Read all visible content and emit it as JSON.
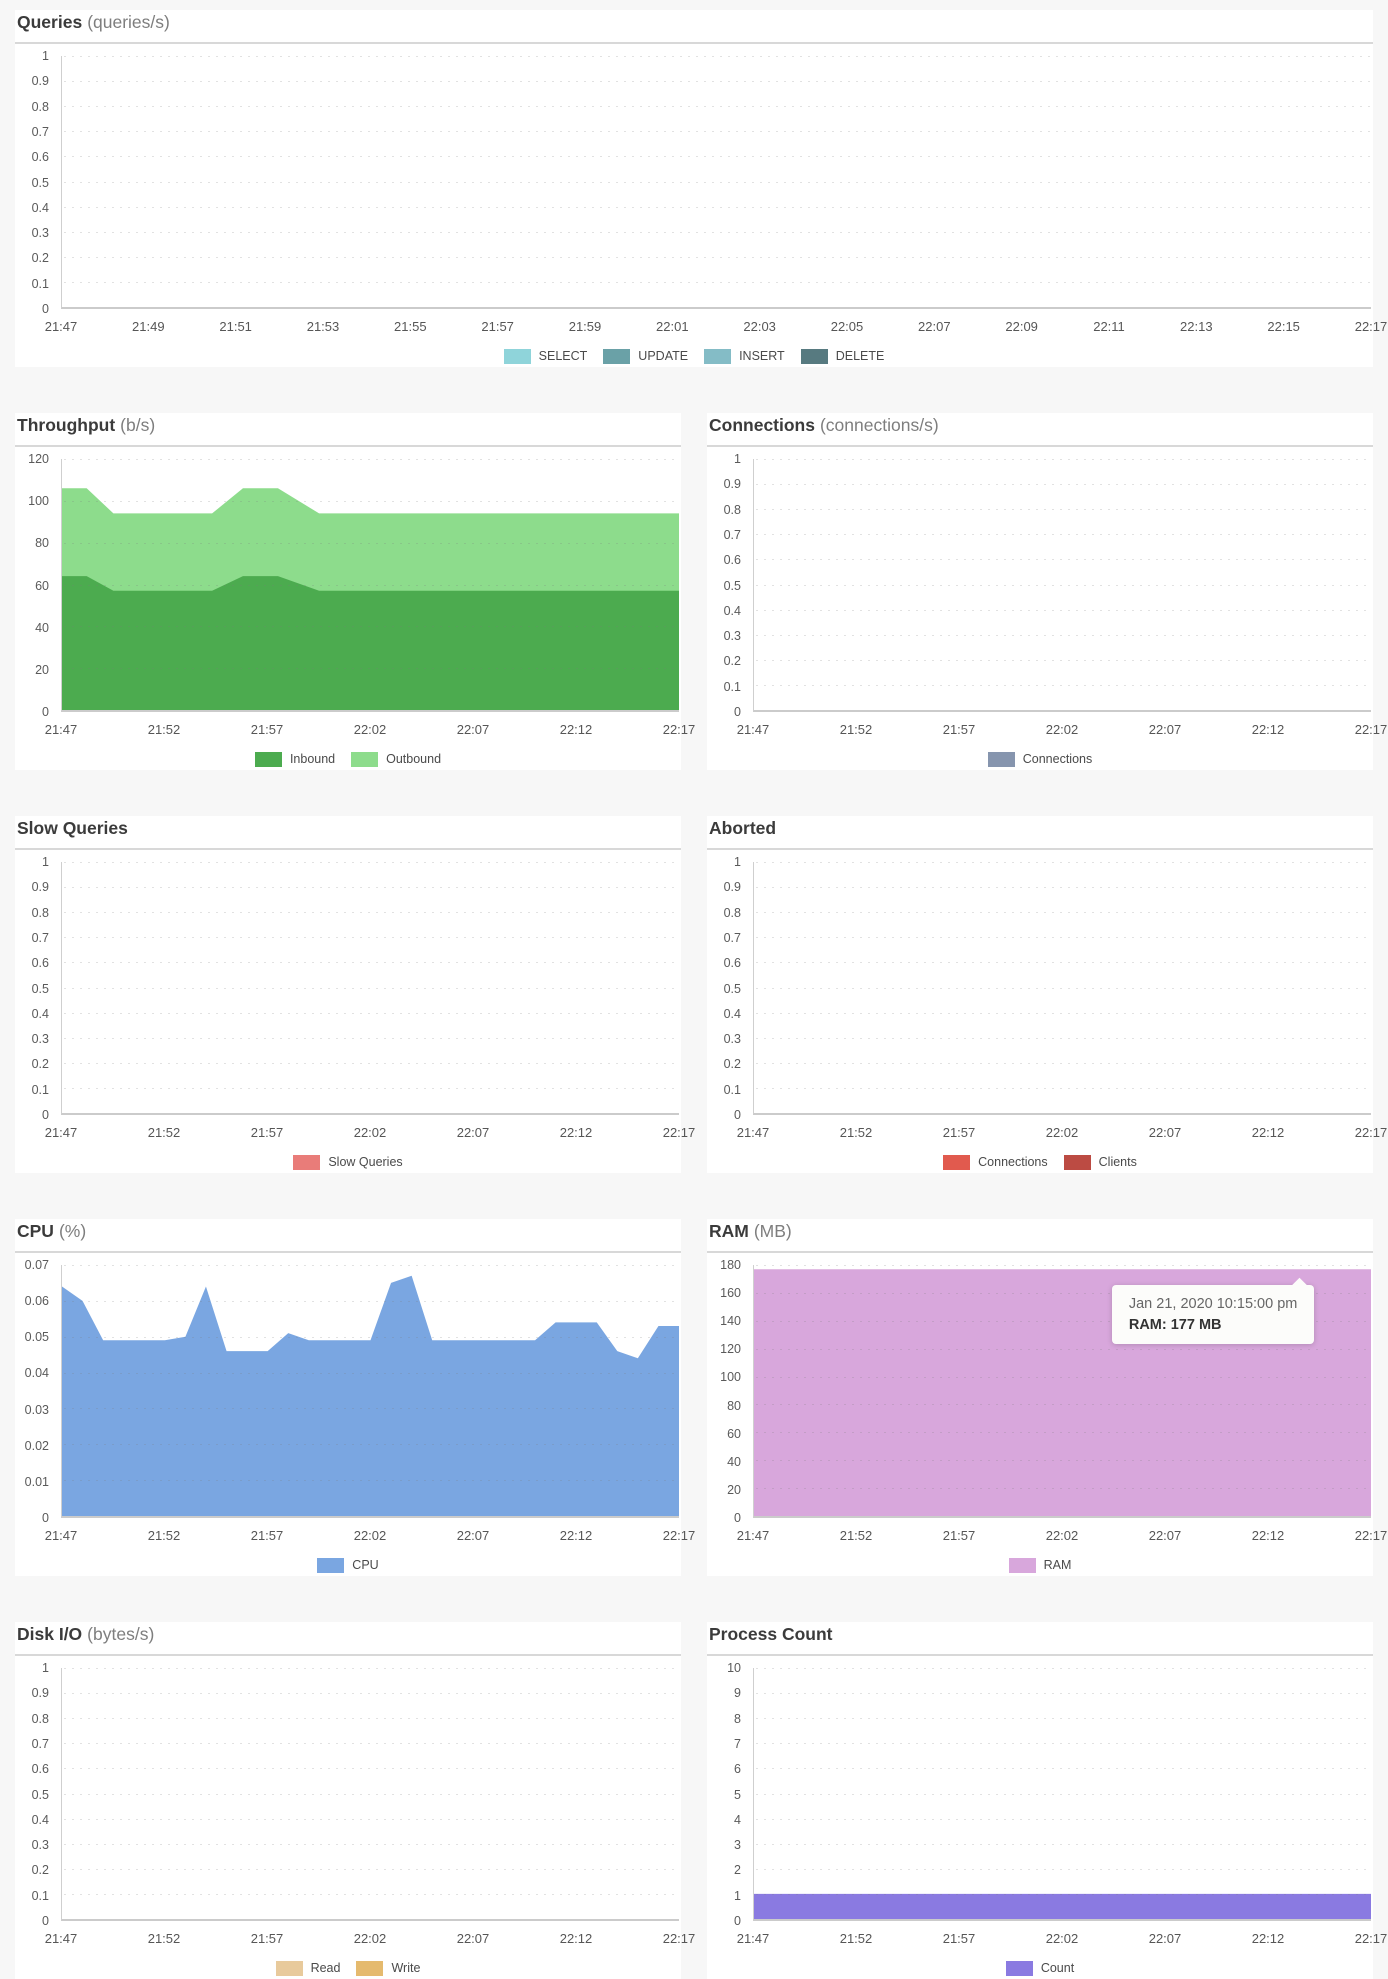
{
  "page": {
    "background": "#f7f7f7",
    "panel_background": "#ffffff",
    "axis_color": "#cbcbcb",
    "grid_color": "#e4e4e4",
    "title_color": "#3b3b3b",
    "unit_color": "#7e7e7e",
    "tick_color": "#5a5a5a"
  },
  "chart_data": [
    {
      "type": "area",
      "title": "Queries",
      "unit": "(queries/s)",
      "layout": "full",
      "ylim": [
        0,
        1
      ],
      "yticks": [
        "1",
        "0.9",
        "0.8",
        "0.7",
        "0.6",
        "0.5",
        "0.4",
        "0.3",
        "0.2",
        "0.1",
        "0"
      ],
      "x_ticks": [
        "21:47",
        "21:49",
        "21:51",
        "21:53",
        "21:55",
        "21:57",
        "21:59",
        "22:01",
        "22:03",
        "22:05",
        "22:07",
        "22:09",
        "22:11",
        "22:13",
        "22:15",
        "22:17"
      ],
      "x_minutes": 30,
      "series": [],
      "legend": [
        {
          "label": "SELECT",
          "color": "#8fd4da"
        },
        {
          "label": "UPDATE",
          "color": "#6aa1a7"
        },
        {
          "label": "INSERT",
          "color": "#84bcc6"
        },
        {
          "label": "DELETE",
          "color": "#577a80"
        }
      ]
    },
    {
      "type": "area",
      "title": "Throughput",
      "unit": "(b/s)",
      "layout": "half",
      "ylim": [
        0,
        120
      ],
      "yticks": [
        "120",
        "100",
        "80",
        "60",
        "40",
        "20",
        "0"
      ],
      "x_ticks": [
        "21:47",
        "21:52",
        "21:57",
        "22:02",
        "22:07",
        "22:12",
        "22:17"
      ],
      "x_minutes": 30,
      "series": [
        {
          "name": "Outbound",
          "color": "#8ddc8c",
          "x": [
            0,
            1.2,
            2.5,
            7.3,
            8.8,
            10.5,
            12.5,
            30
          ],
          "values": [
            106,
            106,
            94,
            94,
            106,
            106,
            94,
            94
          ]
        },
        {
          "name": "Inbound",
          "color": "#4cab4f",
          "x": [
            0,
            1.2,
            2.5,
            7.3,
            8.8,
            10.5,
            12.5,
            30
          ],
          "values": [
            64,
            64,
            57,
            57,
            64,
            64,
            57,
            57
          ]
        }
      ],
      "legend": [
        {
          "label": "Inbound",
          "color": "#4cab4f"
        },
        {
          "label": "Outbound",
          "color": "#8ddc8c"
        }
      ]
    },
    {
      "type": "area",
      "title": "Connections",
      "unit": "(connections/s)",
      "layout": "half",
      "ylim": [
        0,
        1
      ],
      "yticks": [
        "1",
        "0.9",
        "0.8",
        "0.7",
        "0.6",
        "0.5",
        "0.4",
        "0.3",
        "0.2",
        "0.1",
        "0"
      ],
      "x_ticks": [
        "21:47",
        "21:52",
        "21:57",
        "22:02",
        "22:07",
        "22:12",
        "22:17"
      ],
      "x_minutes": 30,
      "series": [],
      "legend": [
        {
          "label": "Connections",
          "color": "#8695ae"
        }
      ]
    },
    {
      "type": "area",
      "title": "Slow Queries",
      "unit": "",
      "layout": "half",
      "ylim": [
        0,
        1
      ],
      "yticks": [
        "1",
        "0.9",
        "0.8",
        "0.7",
        "0.6",
        "0.5",
        "0.4",
        "0.3",
        "0.2",
        "0.1",
        "0"
      ],
      "x_ticks": [
        "21:47",
        "21:52",
        "21:57",
        "22:02",
        "22:07",
        "22:12",
        "22:17"
      ],
      "x_minutes": 30,
      "series": [],
      "legend": [
        {
          "label": "Slow Queries",
          "color": "#e97c79"
        }
      ]
    },
    {
      "type": "area",
      "title": "Aborted",
      "unit": "",
      "layout": "half",
      "ylim": [
        0,
        1
      ],
      "yticks": [
        "1",
        "0.9",
        "0.8",
        "0.7",
        "0.6",
        "0.5",
        "0.4",
        "0.3",
        "0.2",
        "0.1",
        "0"
      ],
      "x_ticks": [
        "21:47",
        "21:52",
        "21:57",
        "22:02",
        "22:07",
        "22:12",
        "22:17"
      ],
      "x_minutes": 30,
      "series": [],
      "legend": [
        {
          "label": "Connections",
          "color": "#e15a4e"
        },
        {
          "label": "Clients",
          "color": "#bc4b43"
        }
      ]
    },
    {
      "type": "area",
      "title": "CPU",
      "unit": "(%)",
      "layout": "half",
      "ylim": [
        0,
        0.07
      ],
      "yticks": [
        "0.07",
        "0.06",
        "0.05",
        "0.04",
        "0.03",
        "0.02",
        "0.01",
        "0"
      ],
      "x_ticks": [
        "21:47",
        "21:52",
        "21:57",
        "22:02",
        "22:07",
        "22:12",
        "22:17"
      ],
      "x_minutes": 30,
      "series": [
        {
          "name": "CPU",
          "color": "#7aa6e1",
          "x": [
            0,
            1,
            2,
            3,
            4,
            5,
            6,
            7,
            8,
            9,
            10,
            11,
            12,
            13,
            14,
            15,
            16,
            17,
            18,
            19,
            20,
            21,
            22,
            23,
            24,
            25,
            26,
            27,
            28,
            29,
            30
          ],
          "values": [
            0.064,
            0.06,
            0.049,
            0.049,
            0.049,
            0.049,
            0.05,
            0.064,
            0.046,
            0.046,
            0.046,
            0.051,
            0.049,
            0.049,
            0.049,
            0.049,
            0.065,
            0.067,
            0.049,
            0.049,
            0.049,
            0.049,
            0.049,
            0.049,
            0.054,
            0.054,
            0.054,
            0.046,
            0.044,
            0.053,
            0.053
          ]
        }
      ],
      "legend": [
        {
          "label": "CPU",
          "color": "#7aa6e1"
        }
      ]
    },
    {
      "type": "area",
      "title": "RAM",
      "unit": "(MB)",
      "layout": "half",
      "ylim": [
        0,
        180
      ],
      "yticks": [
        "180",
        "160",
        "140",
        "120",
        "100",
        "80",
        "60",
        "40",
        "20",
        "0"
      ],
      "x_ticks": [
        "21:47",
        "21:52",
        "21:57",
        "22:02",
        "22:07",
        "22:12",
        "22:17"
      ],
      "x_minutes": 30,
      "series": [
        {
          "name": "RAM",
          "color": "#d8a7dc",
          "x": [
            0,
            30
          ],
          "values": [
            177,
            177
          ]
        }
      ],
      "tooltip": {
        "timestamp": "Jan 21, 2020 10:15:00 pm",
        "value": "RAM: 177 MB"
      },
      "legend": [
        {
          "label": "RAM",
          "color": "#d8a7dc"
        }
      ]
    },
    {
      "type": "area",
      "title": "Disk I/O",
      "unit": "(bytes/s)",
      "layout": "half",
      "ylim": [
        0,
        1
      ],
      "yticks": [
        "1",
        "0.9",
        "0.8",
        "0.7",
        "0.6",
        "0.5",
        "0.4",
        "0.3",
        "0.2",
        "0.1",
        "0"
      ],
      "x_ticks": [
        "21:47",
        "21:52",
        "21:57",
        "22:02",
        "22:07",
        "22:12",
        "22:17"
      ],
      "x_minutes": 30,
      "series": [],
      "legend": [
        {
          "label": "Read",
          "color": "#e8ca9c"
        },
        {
          "label": "Write",
          "color": "#e5ba6e"
        }
      ]
    },
    {
      "type": "area",
      "title": "Process Count",
      "unit": "",
      "layout": "half",
      "ylim": [
        0,
        10
      ],
      "yticks": [
        "10",
        "9",
        "8",
        "7",
        "6",
        "5",
        "4",
        "3",
        "2",
        "1",
        "0"
      ],
      "x_ticks": [
        "21:47",
        "21:52",
        "21:57",
        "22:02",
        "22:07",
        "22:12",
        "22:17"
      ],
      "x_minutes": 30,
      "series": [
        {
          "name": "Count",
          "color": "#8a7ae1",
          "x": [
            0,
            30
          ],
          "values": [
            1,
            1
          ]
        }
      ],
      "legend": [
        {
          "label": "Count",
          "color": "#8a7ae1"
        }
      ]
    }
  ]
}
